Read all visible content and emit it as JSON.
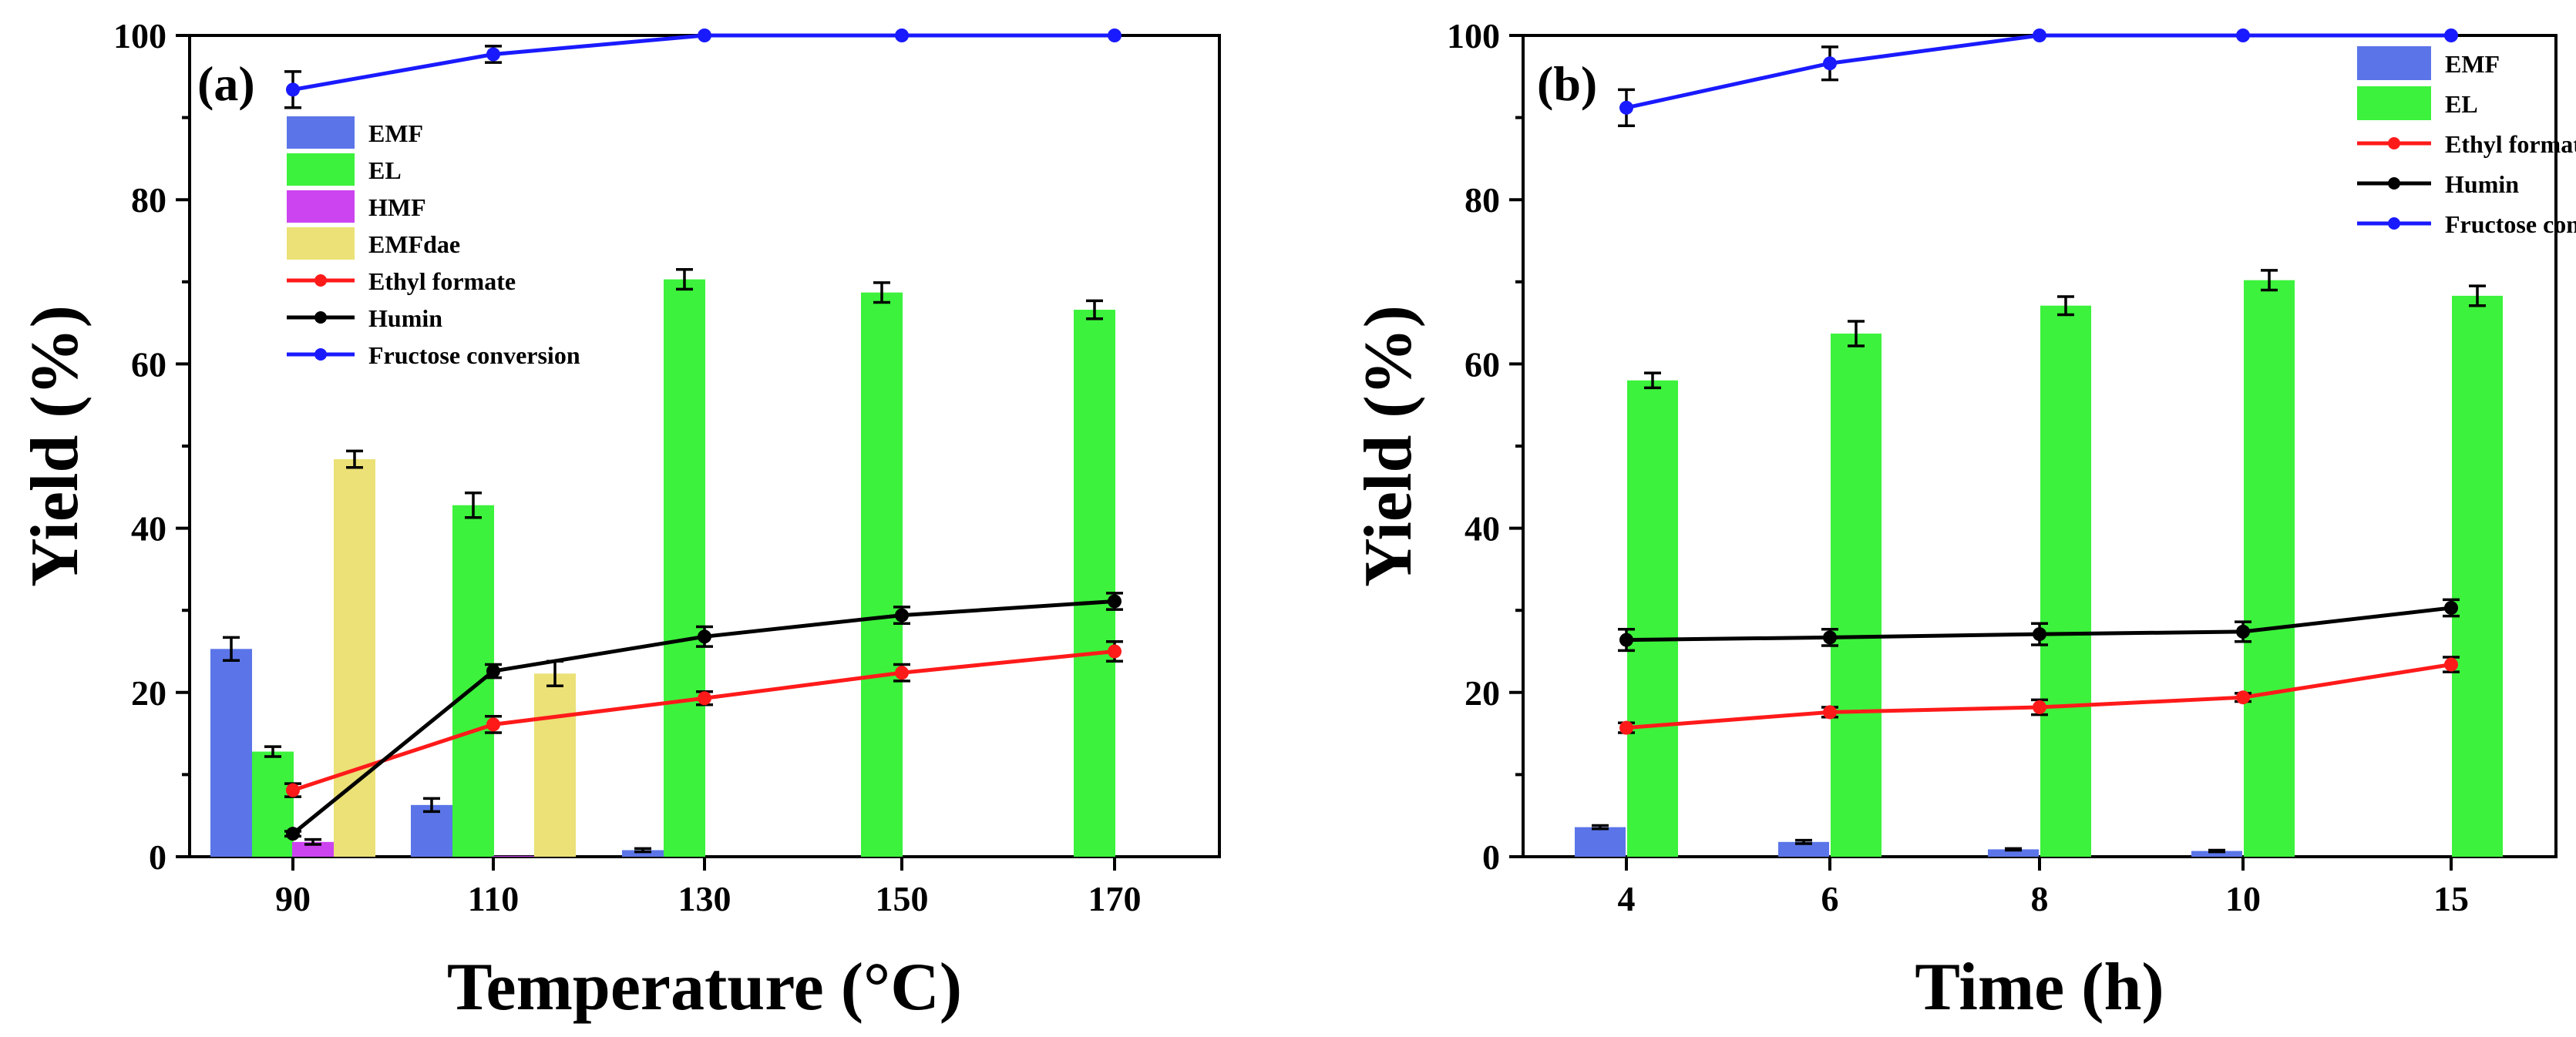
{
  "chart_data": [
    {
      "type": "bar",
      "panel_label": "(a)",
      "xlabel": "Temperature (°C)",
      "ylabel": "Yield (%)",
      "categories": [
        "90",
        "110",
        "130",
        "150",
        "170"
      ],
      "ylim": [
        0,
        100
      ],
      "yticks": [
        0,
        20,
        40,
        60,
        80,
        100
      ],
      "bar_series": [
        {
          "name": "EMF",
          "color": "#5b75e8",
          "values": [
            25.3,
            6.3,
            0.8,
            0,
            0
          ],
          "errors": [
            1.4,
            0.8,
            0.2,
            0,
            0
          ]
        },
        {
          "name": "EL",
          "color": "#3cf23c",
          "values": [
            12.8,
            42.8,
            70.3,
            68.7,
            66.6
          ],
          "errors": [
            0.6,
            1.5,
            1.2,
            1.2,
            1.1
          ]
        },
        {
          "name": "HMF",
          "color": "#cc44f0",
          "values": [
            1.8,
            0.1,
            0,
            0,
            0
          ],
          "errors": [
            0.3,
            0,
            0,
            0,
            0
          ]
        },
        {
          "name": "EMFdae",
          "color": "#ebe176",
          "values": [
            48.4,
            22.3,
            0,
            0,
            0
          ],
          "errors": [
            1.0,
            1.5,
            0,
            0,
            0
          ]
        }
      ],
      "line_series": [
        {
          "name": "Ethyl formate",
          "color": "#ff1a1a",
          "values": [
            8.1,
            16.1,
            19.3,
            22.4,
            25.0
          ],
          "errors": [
            0.8,
            1.0,
            0.8,
            1.0,
            1.2
          ]
        },
        {
          "name": "Humin",
          "color": "#000000",
          "values": [
            2.8,
            22.6,
            26.8,
            29.4,
            31.1
          ],
          "errors": [
            0.3,
            0.8,
            1.2,
            1.0,
            1.0
          ]
        },
        {
          "name": "Fructose conversion",
          "color": "#1a1aff",
          "values": [
            93.4,
            97.7,
            100,
            100,
            100
          ],
          "errors": [
            2.2,
            1.0,
            0,
            0,
            0
          ]
        }
      ],
      "legend_position": "upper-left"
    },
    {
      "type": "bar",
      "panel_label": "(b)",
      "xlabel": "Time (h)",
      "ylabel": "Yield (%)",
      "categories": [
        "4",
        "6",
        "8",
        "10",
        "15"
      ],
      "ylim": [
        0,
        100
      ],
      "yticks": [
        0,
        20,
        40,
        60,
        80,
        100
      ],
      "bar_series": [
        {
          "name": "EMF",
          "color": "#5b75e8",
          "values": [
            3.6,
            1.8,
            0.9,
            0.7,
            0
          ],
          "errors": [
            0.2,
            0.2,
            0.1,
            0.1,
            0
          ]
        },
        {
          "name": "EL",
          "color": "#3cf23c",
          "values": [
            58.0,
            63.7,
            67.1,
            70.2,
            68.3
          ],
          "errors": [
            0.9,
            1.5,
            1.1,
            1.2,
            1.2
          ]
        }
      ],
      "line_series": [
        {
          "name": "Ethyl formate",
          "color": "#ff1a1a",
          "values": [
            15.7,
            17.6,
            18.2,
            19.4,
            23.4
          ],
          "errors": [
            0.6,
            0.6,
            0.9,
            0.5,
            0.9
          ]
        },
        {
          "name": "Humin",
          "color": "#000000",
          "values": [
            26.4,
            26.7,
            27.1,
            27.4,
            30.3
          ],
          "errors": [
            1.3,
            1.0,
            1.3,
            1.2,
            1.0
          ]
        },
        {
          "name": "Fructose conversion",
          "color": "#1a1aff",
          "values": [
            91.2,
            96.6,
            100,
            100,
            100
          ],
          "errors": [
            2.2,
            2.0,
            0,
            0,
            0
          ]
        }
      ],
      "legend_position": "upper-right"
    }
  ]
}
